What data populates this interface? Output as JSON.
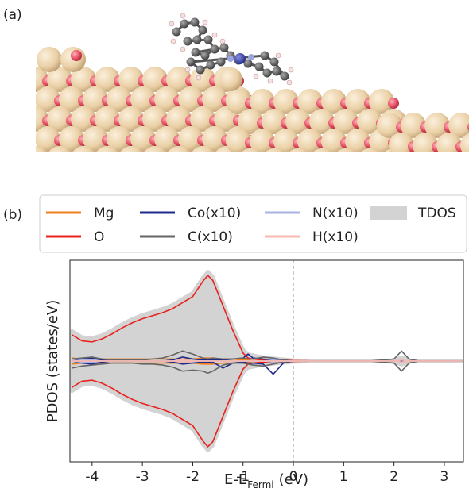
{
  "chart_data": {
    "type": "line",
    "panel_labels": [
      "(a)",
      "(b)"
    ],
    "xlabel": "E-E",
    "xlabel_sub": "Fermi",
    "xlabel_unit": "(eV)",
    "ylabel": "PDOS (states/eV)",
    "xlim": [
      -4.44,
      3.38
    ],
    "ylim": [
      -1,
      1
    ],
    "xticks": [
      -4,
      -3,
      -2,
      -1,
      0,
      1,
      2,
      3
    ],
    "vline": 0,
    "x": [
      -4.4,
      -4.2,
      -4.0,
      -3.8,
      -3.6,
      -3.4,
      -3.2,
      -3.0,
      -2.8,
      -2.6,
      -2.4,
      -2.2,
      -2.0,
      -1.8,
      -1.7,
      -1.6,
      -1.4,
      -1.2,
      -1.0,
      -0.9,
      -0.8,
      -0.6,
      -0.4,
      -0.2,
      0.0,
      0.5,
      1.0,
      1.5,
      2.0,
      2.15,
      2.3,
      2.5,
      3.0,
      3.35
    ],
    "series": [
      {
        "name": "Mg",
        "color": "#f07f1c",
        "values": [
          0.03,
          0.02,
          0.02,
          0.02,
          0.02,
          0.02,
          0.02,
          0.02,
          0.02,
          0.02,
          0.02,
          0.02,
          0.02,
          0.03,
          0.03,
          0.03,
          0.02,
          0.02,
          0.01,
          0.01,
          0,
          0,
          0,
          0,
          0,
          0,
          0,
          0,
          0,
          0,
          0,
          0,
          0,
          0
        ],
        "values_down": [
          -0.03,
          -0.02,
          -0.02,
          -0.02,
          -0.02,
          -0.02,
          -0.02,
          -0.02,
          -0.02,
          -0.02,
          -0.02,
          -0.02,
          -0.02,
          -0.03,
          -0.03,
          -0.03,
          -0.02,
          -0.02,
          -0.01,
          -0.01,
          0,
          0,
          0,
          0,
          0,
          0,
          0,
          0,
          0,
          0,
          0,
          0,
          0,
          0
        ]
      },
      {
        "name": "O",
        "color": "#e8211c",
        "values": [
          0.26,
          0.2,
          0.19,
          0.22,
          0.27,
          0.33,
          0.38,
          0.42,
          0.45,
          0.48,
          0.52,
          0.58,
          0.64,
          0.79,
          0.85,
          0.8,
          0.55,
          0.3,
          0.08,
          0.03,
          0.02,
          0.01,
          0.01,
          0.01,
          0.005,
          0,
          0,
          0,
          0,
          0,
          0,
          0,
          0,
          0
        ],
        "values_down": [
          -0.26,
          -0.2,
          -0.19,
          -0.22,
          -0.27,
          -0.33,
          -0.38,
          -0.42,
          -0.45,
          -0.48,
          -0.52,
          -0.58,
          -0.64,
          -0.79,
          -0.85,
          -0.8,
          -0.55,
          -0.3,
          -0.08,
          -0.03,
          -0.02,
          -0.01,
          -0.01,
          -0.01,
          -0.005,
          0,
          0,
          0,
          0,
          0,
          0,
          0,
          0,
          0
        ]
      },
      {
        "name": "Co(x10)",
        "color": "#1f2a8c",
        "values": [
          0,
          0.02,
          0.03,
          0.01,
          0,
          0,
          0,
          0,
          0,
          0,
          0.01,
          0.04,
          0.02,
          0.01,
          0.01,
          0.01,
          0.01,
          0.02,
          0.03,
          0.07,
          0.03,
          0.02,
          0.01,
          0.01,
          0,
          0,
          0,
          0,
          0,
          0,
          0,
          0,
          0,
          0
        ],
        "values_down": [
          0,
          -0.02,
          -0.03,
          -0.01,
          0,
          0,
          0,
          0,
          0,
          0,
          -0.01,
          -0.03,
          -0.02,
          -0.01,
          -0.01,
          -0.01,
          -0.07,
          -0.02,
          -0.01,
          -0.02,
          -0.02,
          -0.03,
          -0.13,
          -0.02,
          0,
          0,
          0,
          0,
          0,
          0,
          0,
          0,
          0,
          0
        ]
      },
      {
        "name": "C(x10)",
        "color": "#666666",
        "values": [
          0.02,
          0.03,
          0.04,
          0.02,
          0.01,
          0.01,
          0.01,
          0.01,
          0.02,
          0.03,
          0.06,
          0.1,
          0.07,
          0.03,
          0.02,
          0.03,
          0.02,
          0.02,
          0.03,
          0.02,
          0.02,
          0.04,
          0.03,
          0.01,
          0,
          0,
          0,
          0,
          0.02,
          0.1,
          0.02,
          0,
          0,
          0
        ],
        "values_down": [
          -0.07,
          -0.05,
          -0.04,
          -0.03,
          -0.02,
          -0.02,
          -0.02,
          -0.03,
          -0.03,
          -0.04,
          -0.06,
          -0.1,
          -0.09,
          -0.1,
          -0.12,
          -0.1,
          -0.04,
          -0.02,
          -0.02,
          -0.03,
          -0.04,
          -0.05,
          -0.03,
          -0.01,
          0,
          0,
          0,
          0,
          -0.02,
          -0.1,
          -0.02,
          0,
          0,
          0
        ]
      },
      {
        "name": "N(x10)",
        "color": "#aab2e2",
        "values": [
          0,
          0.01,
          0.01,
          0,
          0,
          0,
          0,
          0,
          0,
          0,
          0,
          0.01,
          0,
          0,
          0,
          0,
          0,
          0,
          0,
          0,
          0,
          0,
          0.01,
          0,
          0,
          0,
          0,
          0,
          0,
          0.01,
          0,
          0,
          0,
          0
        ],
        "values_down": [
          0,
          -0.01,
          -0.01,
          0,
          0,
          0,
          0,
          0,
          0,
          0,
          0,
          -0.01,
          0,
          0,
          0,
          0,
          0,
          0,
          0,
          0,
          0,
          0,
          -0.01,
          0,
          0,
          0,
          0,
          0,
          0,
          -0.01,
          0,
          0,
          0,
          0
        ]
      },
      {
        "name": "H(x10)",
        "color": "#f7b9b0",
        "values": [
          0,
          0,
          0,
          0,
          0,
          0,
          0,
          0,
          0,
          0,
          0,
          0.01,
          0,
          0,
          0,
          0,
          0,
          0,
          0,
          0,
          0,
          0,
          0,
          0,
          0,
          0,
          0,
          0,
          0,
          0.01,
          0,
          0,
          0,
          0
        ],
        "values_down": [
          0,
          0,
          0,
          0,
          0,
          0,
          0,
          0,
          0,
          0,
          0,
          -0.01,
          0,
          0,
          0,
          0,
          0,
          0,
          0,
          0,
          0,
          0,
          0,
          0,
          0,
          0,
          0,
          0,
          0,
          -0.01,
          0,
          0,
          0,
          0
        ]
      },
      {
        "name": "TDOS",
        "color": "#d3d3d3",
        "fill": true,
        "values": [
          0.3,
          0.24,
          0.23,
          0.26,
          0.31,
          0.37,
          0.42,
          0.46,
          0.49,
          0.52,
          0.56,
          0.62,
          0.68,
          0.83,
          0.89,
          0.84,
          0.59,
          0.34,
          0.12,
          0.07,
          0.06,
          0.04,
          0.03,
          0.02,
          0.01,
          0.005,
          0.005,
          0.005,
          0.01,
          0.04,
          0.01,
          0.005,
          0.005,
          0.005
        ],
        "values_down": [
          -0.3,
          -0.24,
          -0.23,
          -0.26,
          -0.31,
          -0.37,
          -0.42,
          -0.46,
          -0.49,
          -0.52,
          -0.56,
          -0.62,
          -0.68,
          -0.83,
          -0.89,
          -0.84,
          -0.59,
          -0.34,
          -0.12,
          -0.07,
          -0.06,
          -0.04,
          -0.03,
          -0.02,
          -0.01,
          -0.005,
          -0.005,
          -0.005,
          -0.01,
          -0.04,
          -0.01,
          -0.005,
          -0.005,
          -0.005
        ]
      }
    ]
  }
}
